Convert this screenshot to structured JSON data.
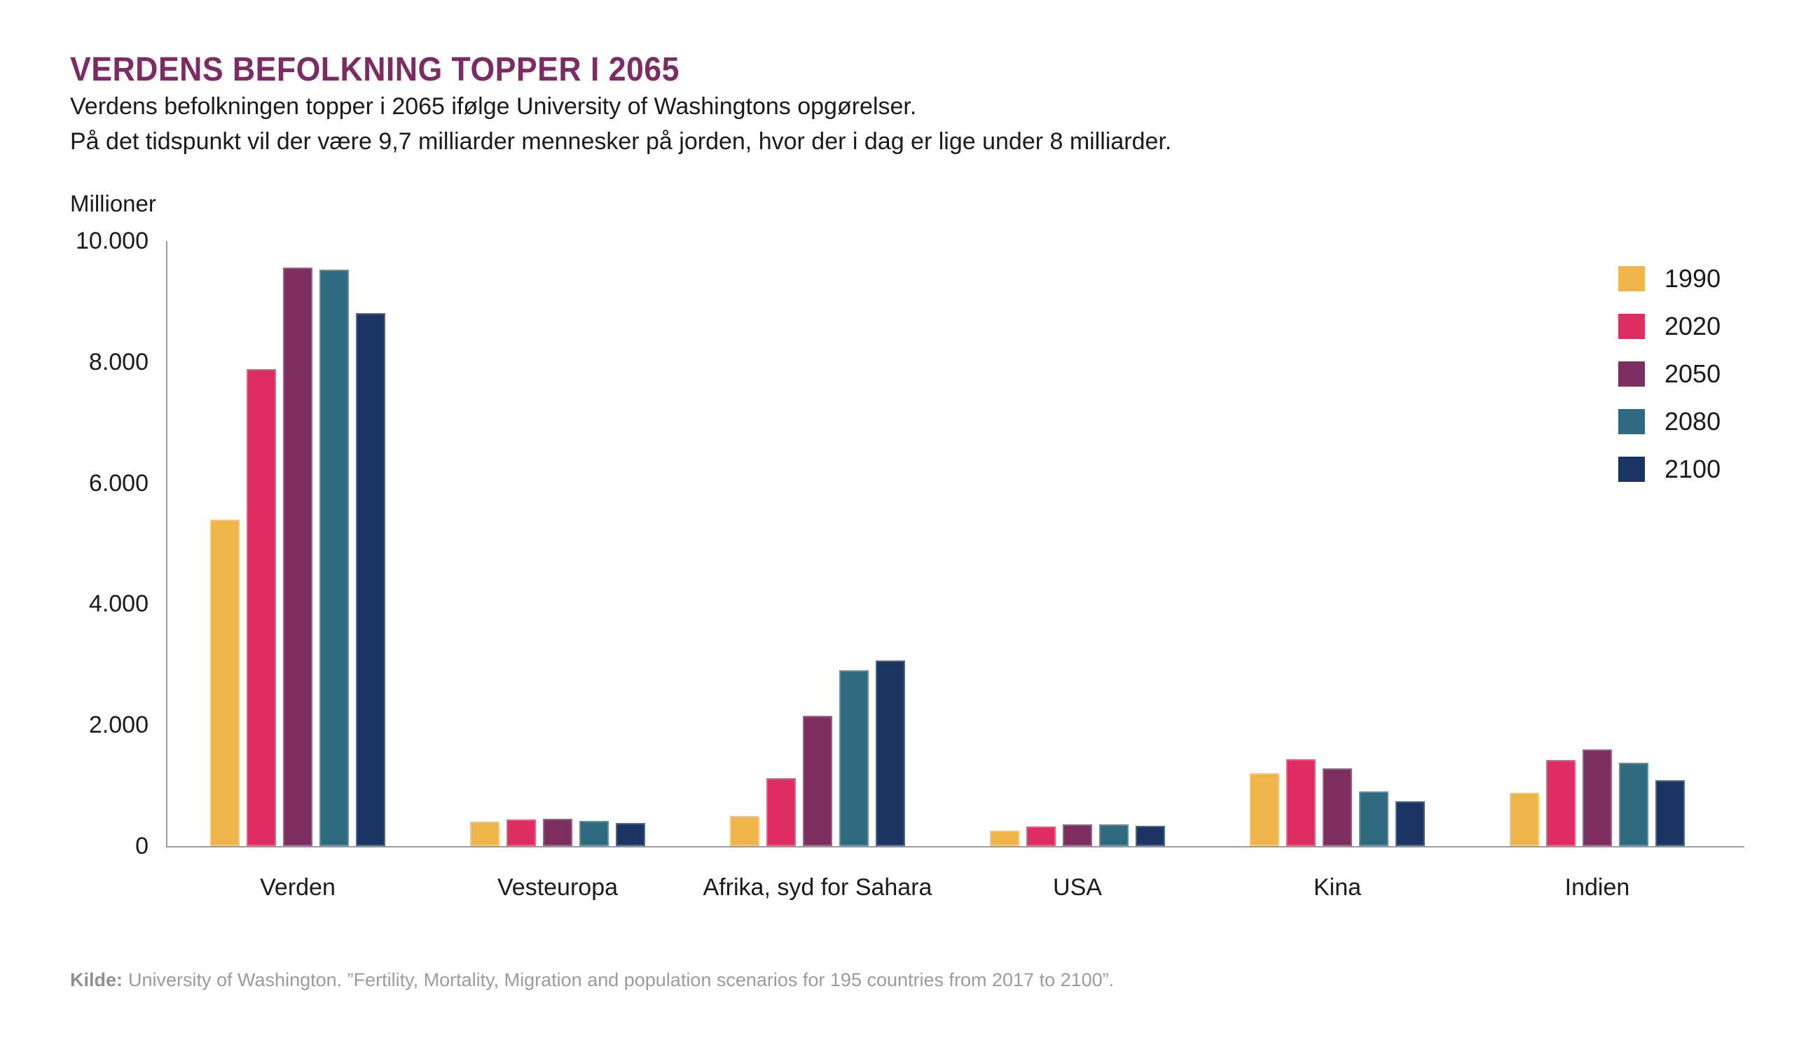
{
  "page": {
    "title": "VERDENS BEFOLKNING TOPPER I 2065",
    "subtitle_line1": "Verdens befolkningen topper i 2065 ifølge University of Washingtons opgørelser.",
    "subtitle_line2": "På det tidspunkt vil der være 9,7 milliarder mennesker på jorden, hvor der i dag er lige under 8 milliarder.",
    "source_label": "Kilde:",
    "source_text": "University of Washington. ”Fertility, Mortality, Migration and population scenarios for 195 countries from 2017 to 2100”."
  },
  "chart_data": {
    "type": "bar",
    "title": "VERDENS BEFOLKNING TOPPER I 2065",
    "unit_label": "Millioner",
    "ylabel": "Millioner",
    "xlabel": "",
    "grid": false,
    "legend_position": "right",
    "ylim": [
      0,
      10000
    ],
    "yticks": [
      0,
      2000,
      4000,
      6000,
      8000,
      10000
    ],
    "ytick_labels": [
      "0",
      "2.000",
      "4.000",
      "6.000",
      "8.000",
      "10.000"
    ],
    "categories": [
      "Verden",
      "Vesteuropa",
      "Afrika, syd for Sahara",
      "USA",
      "Kina",
      "Indien"
    ],
    "series": [
      {
        "name": "1990",
        "color": "#f0b548",
        "values": [
          5390,
          400,
          500,
          255,
          1200,
          875
        ]
      },
      {
        "name": "2020",
        "color": "#de2d60",
        "values": [
          7880,
          445,
          1120,
          325,
          1430,
          1420
        ]
      },
      {
        "name": "2050",
        "color": "#7c2e60",
        "values": [
          9560,
          450,
          2150,
          360,
          1280,
          1600
        ]
      },
      {
        "name": "2080",
        "color": "#2f6a80",
        "values": [
          9520,
          420,
          2910,
          355,
          905,
          1380
        ]
      },
      {
        "name": "2100",
        "color": "#1a3561",
        "values": [
          8810,
          380,
          3070,
          335,
          740,
          1090
        ]
      }
    ],
    "colors": {
      "title": "#7c2b63",
      "axis": "#9b9b9b",
      "text": "#1a1a1a",
      "source_text": "#9b9b9b",
      "background": "#ffffff"
    }
  }
}
